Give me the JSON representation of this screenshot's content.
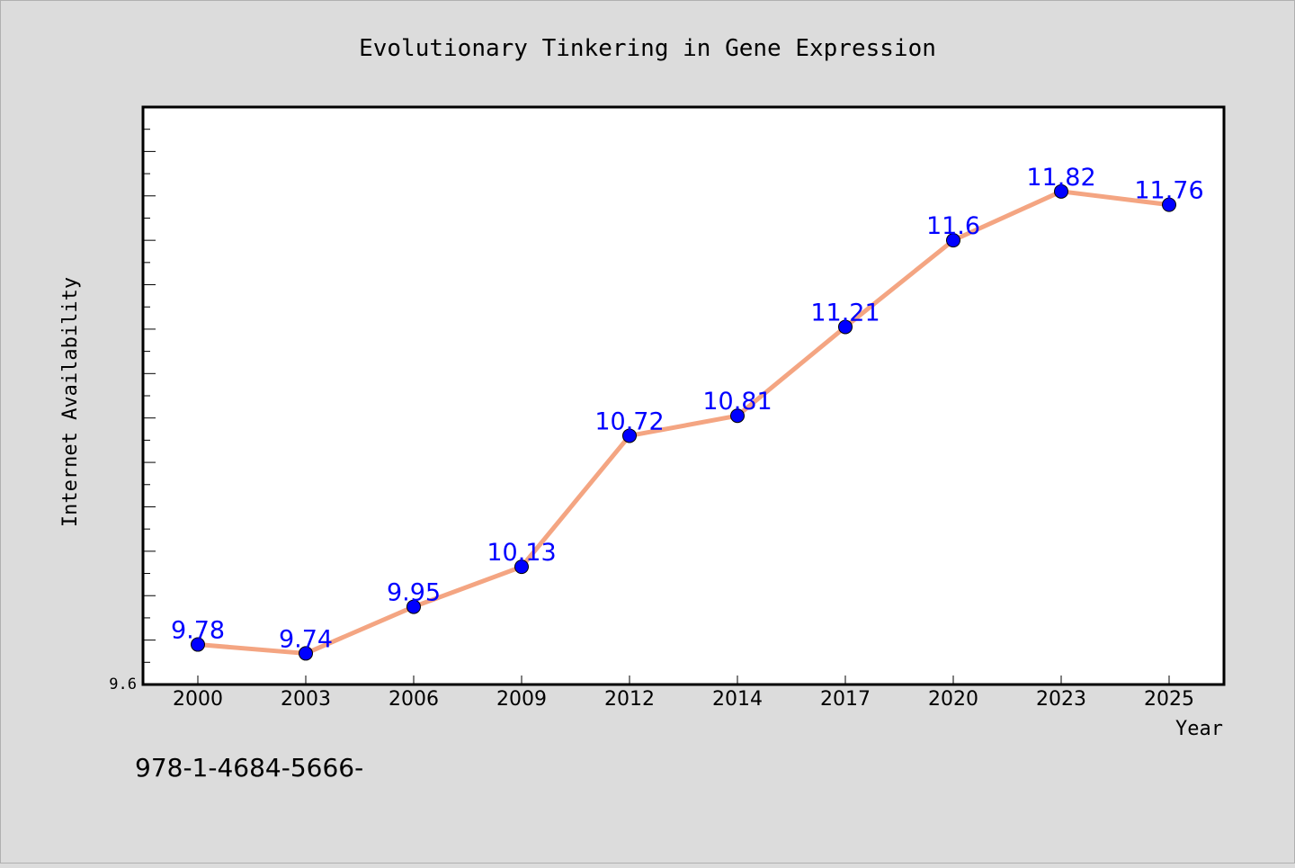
{
  "chart_data": {
    "type": "line",
    "title": "Evolutionary Tinkering in Gene Expression",
    "xlabel": "Year",
    "ylabel": "Internet Availability",
    "categories": [
      "2000",
      "2003",
      "2006",
      "2009",
      "2012",
      "2014",
      "2017",
      "2020",
      "2023",
      "2025"
    ],
    "values": [
      9.78,
      9.74,
      9.95,
      10.13,
      10.72,
      10.81,
      11.21,
      11.6,
      11.82,
      11.76
    ],
    "data_labels": [
      "9.78",
      "9.74",
      "9.95",
      "10.13",
      "10.72",
      "10.81",
      "11.21",
      "11.6",
      "11.82",
      "11.76"
    ],
    "ylim": [
      9.6,
      12.2
    ],
    "y_tick_labels": [
      "9.6"
    ],
    "line_color": "#f4a582",
    "marker_color": "#0000ff",
    "label_color": "#0000ff",
    "grid": false,
    "legend": "none"
  },
  "footer_text": "978-1-4684-5666-"
}
